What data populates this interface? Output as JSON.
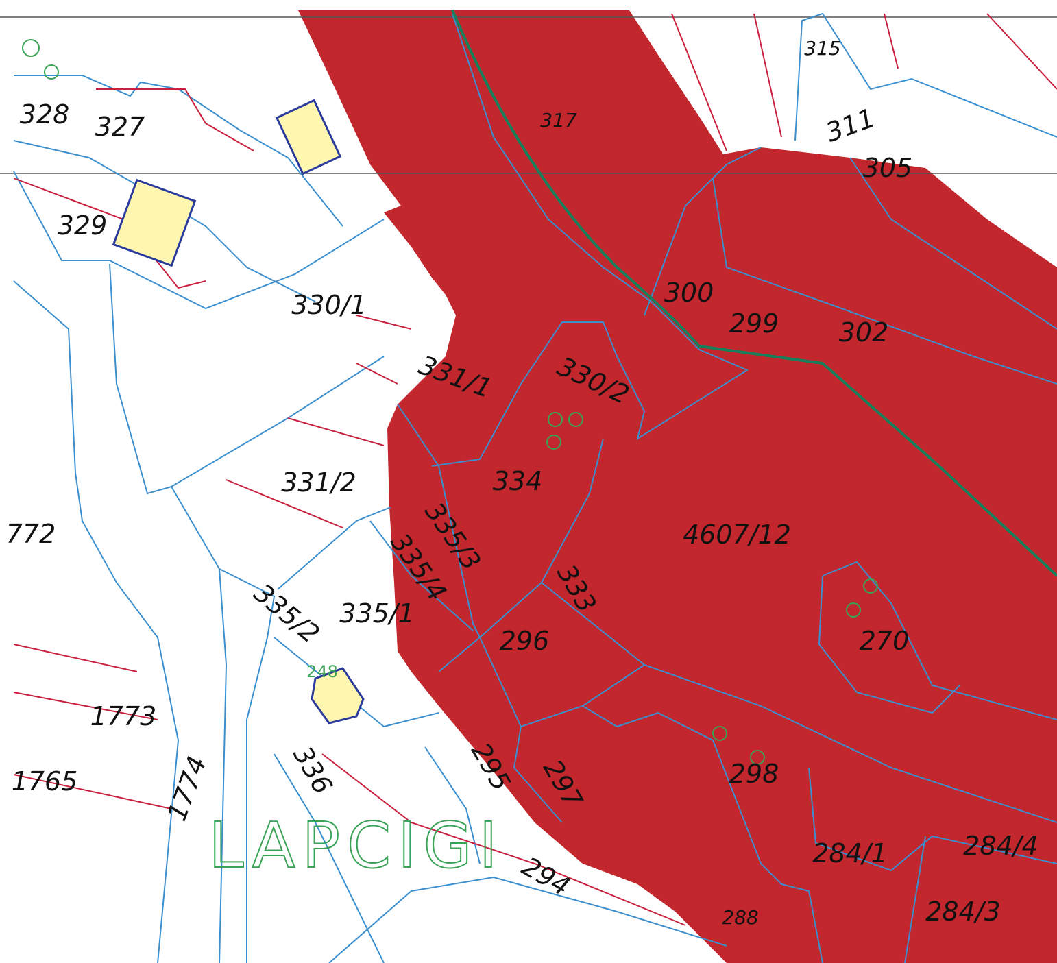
{
  "map": {
    "place_name": "LAPCIGI",
    "building_number": "248",
    "parcels": [
      {
        "label": "315"
      },
      {
        "label": "317"
      },
      {
        "label": "328"
      },
      {
        "label": "327"
      },
      {
        "label": "311"
      },
      {
        "label": "305"
      },
      {
        "label": "329"
      },
      {
        "label": "330/1"
      },
      {
        "label": "300"
      },
      {
        "label": "299"
      },
      {
        "label": "302"
      },
      {
        "label": "331/1"
      },
      {
        "label": "330/2"
      },
      {
        "label": "334"
      },
      {
        "label": "331/2"
      },
      {
        "label": "772"
      },
      {
        "label": "335/3"
      },
      {
        "label": "4607/12"
      },
      {
        "label": "335/4"
      },
      {
        "label": "333"
      },
      {
        "label": "335/1"
      },
      {
        "label": "335/2"
      },
      {
        "label": "296"
      },
      {
        "label": "270"
      },
      {
        "label": "1773"
      },
      {
        "label": "1765"
      },
      {
        "label": "1774"
      },
      {
        "label": "336"
      },
      {
        "label": "295"
      },
      {
        "label": "297"
      },
      {
        "label": "298"
      },
      {
        "label": "284/1"
      },
      {
        "label": "284/4"
      },
      {
        "label": "294"
      },
      {
        "label": "288"
      },
      {
        "label": "284/3"
      }
    ]
  }
}
